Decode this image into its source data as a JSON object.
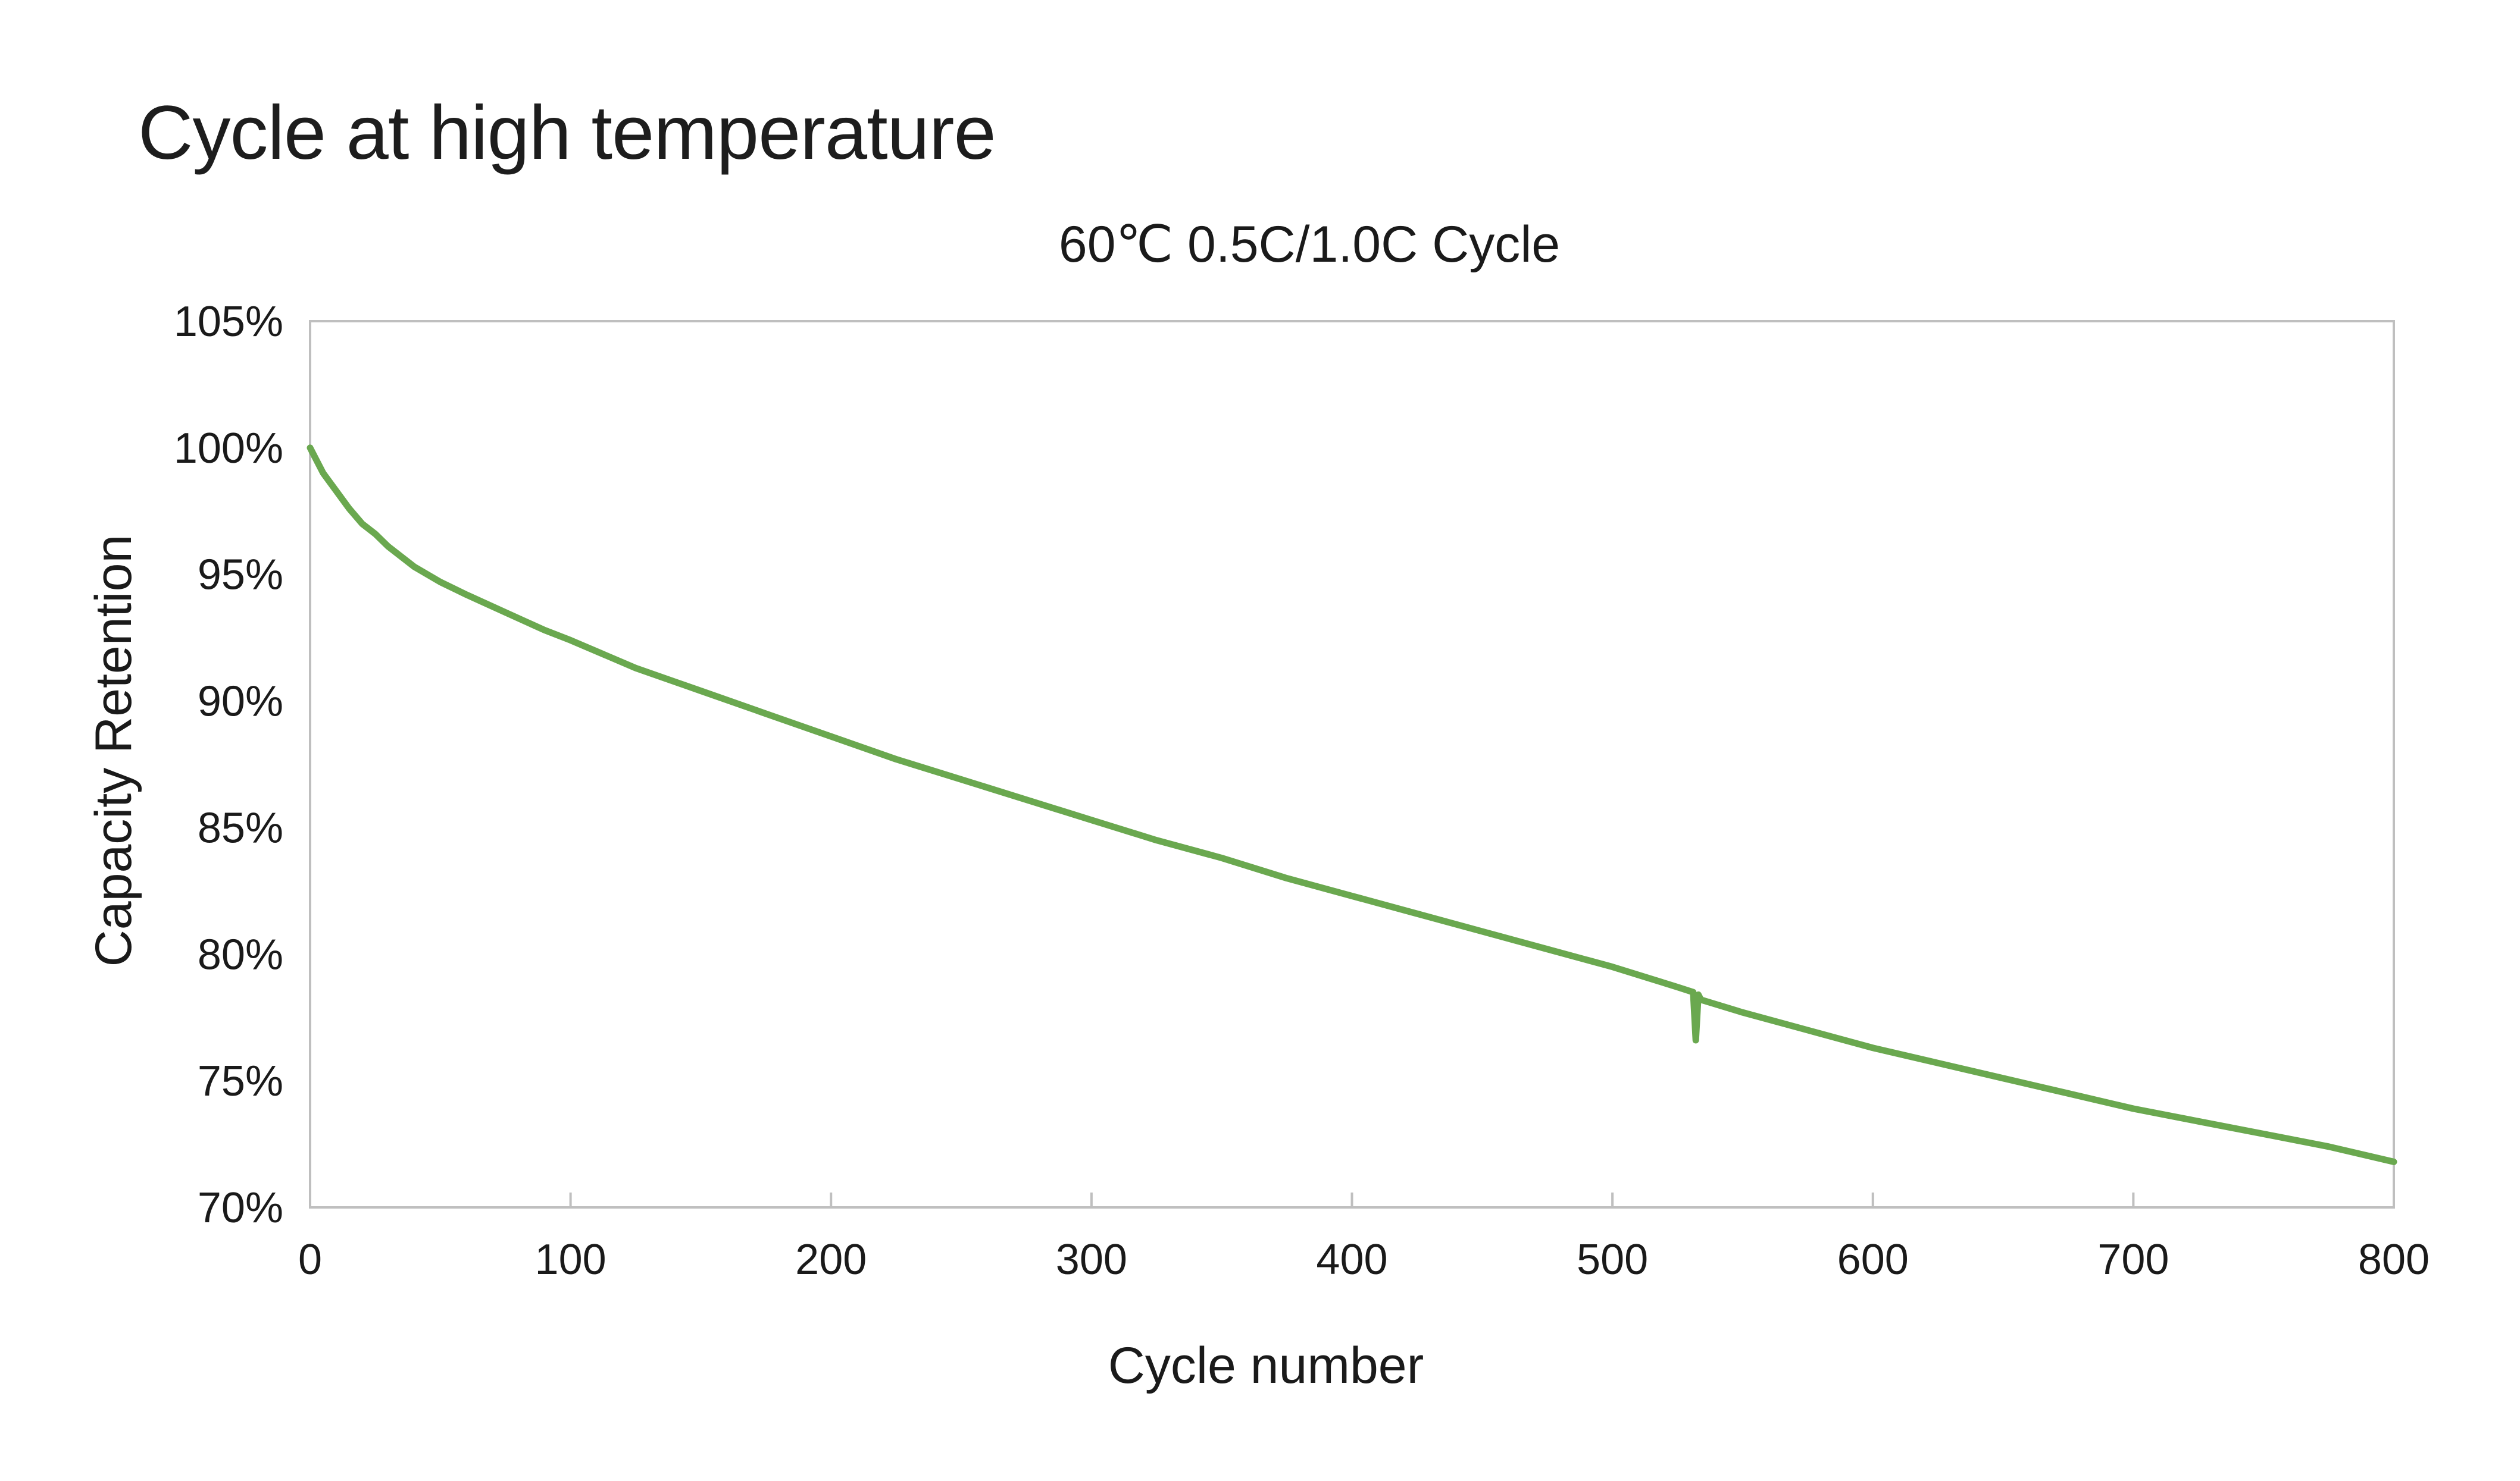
{
  "page": {
    "title": "Cycle at high temperature"
  },
  "chart_data": {
    "type": "line",
    "title": "60℃ 0.5C/1.0C Cycle",
    "xlabel": "Cycle number",
    "ylabel": "Capacity Retention",
    "xlim": [
      0,
      800
    ],
    "ylim": [
      70,
      105
    ],
    "x_ticks": [
      0,
      100,
      200,
      300,
      400,
      500,
      600,
      700,
      800
    ],
    "y_ticks": [
      70,
      75,
      80,
      85,
      90,
      95,
      100,
      105
    ],
    "x_tick_labels": [
      "0",
      "100",
      "200",
      "300",
      "400",
      "500",
      "600",
      "700",
      "800"
    ],
    "y_tick_labels": [
      "70%",
      "75%",
      "80%",
      "85%",
      "90%",
      "95%",
      "100%",
      "105%"
    ],
    "grid": false,
    "colors": {
      "series": "#6aa84f",
      "axis": "#bfbfbf",
      "text": "#1a1a1a"
    },
    "series": [
      {
        "name": "60℃ 0.5C/1.0C Cycle",
        "x": [
          0,
          5,
          10,
          15,
          20,
          25,
          30,
          40,
          50,
          60,
          75,
          90,
          100,
          125,
          150,
          175,
          200,
          225,
          250,
          275,
          300,
          325,
          350,
          375,
          400,
          425,
          450,
          475,
          500,
          525,
          531,
          532,
          533,
          534,
          550,
          575,
          600,
          625,
          650,
          675,
          700,
          725,
          750,
          775,
          800
        ],
        "y": [
          100.0,
          99.0,
          98.3,
          97.6,
          97.0,
          96.6,
          96.1,
          95.3,
          94.7,
          94.2,
          93.5,
          92.8,
          92.4,
          91.3,
          90.4,
          89.5,
          88.6,
          87.7,
          86.9,
          86.1,
          85.3,
          84.5,
          83.8,
          83.0,
          82.3,
          81.6,
          80.9,
          80.2,
          79.5,
          78.7,
          78.5,
          76.6,
          78.4,
          78.2,
          77.7,
          77.0,
          76.3,
          75.7,
          75.1,
          74.5,
          73.9,
          73.4,
          72.9,
          72.4,
          71.8
        ]
      }
    ]
  }
}
